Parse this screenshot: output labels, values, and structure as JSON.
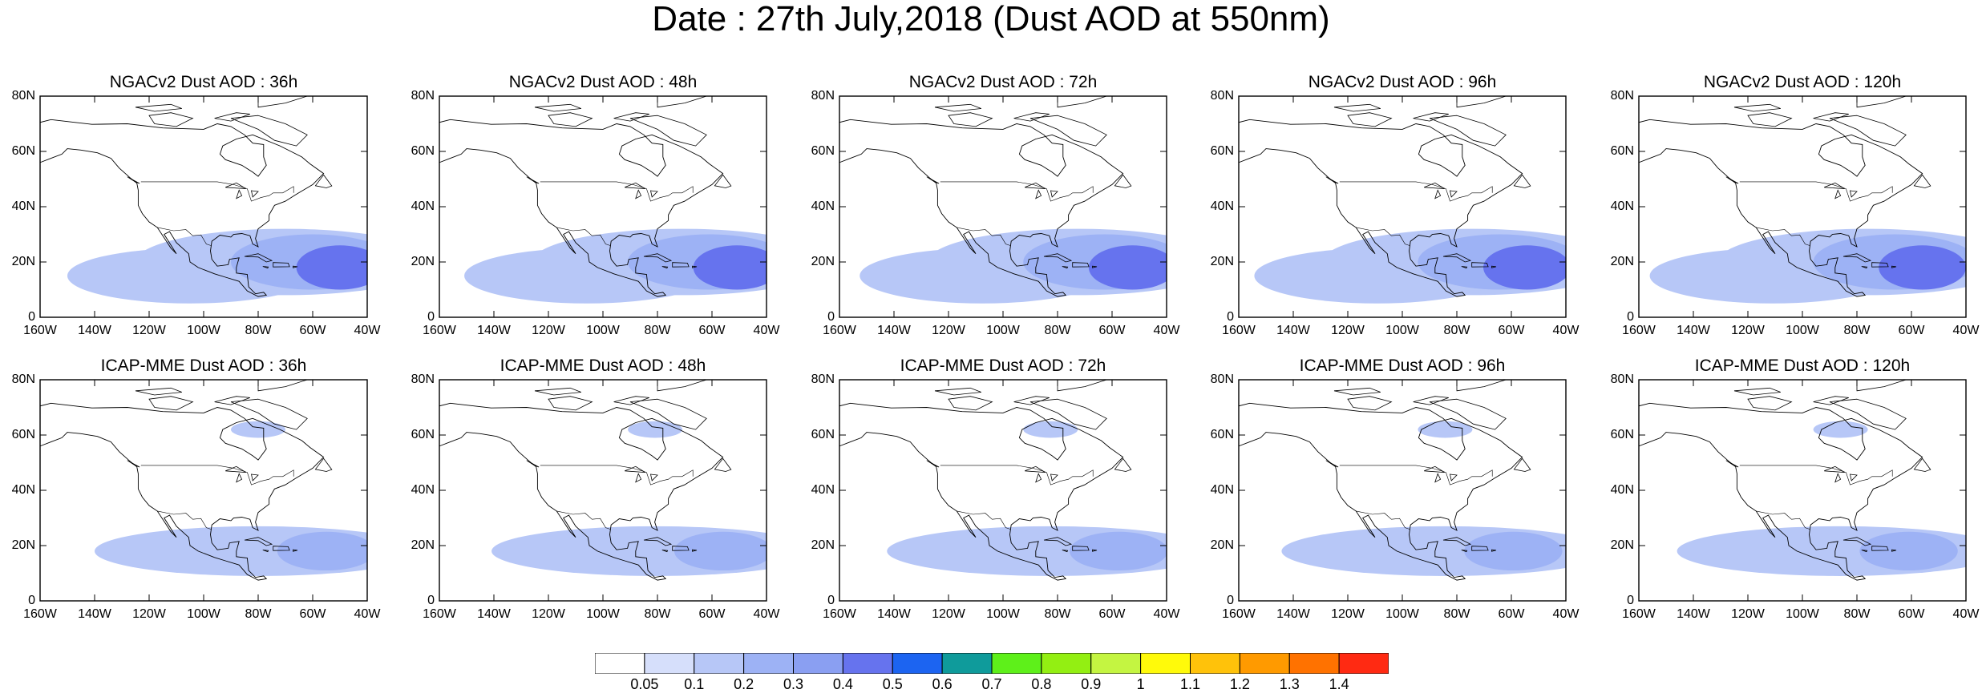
{
  "title": "Date : 27th July,2018 (Dust AOD at 550nm)",
  "panels": [
    {
      "title": "NGACv2 Dust AOD : 36h",
      "row": 0,
      "col": 0,
      "model": "NGACv2",
      "lead_hours": 36
    },
    {
      "title": "NGACv2 Dust AOD : 48h",
      "row": 0,
      "col": 1,
      "model": "NGACv2",
      "lead_hours": 48
    },
    {
      "title": "NGACv2 Dust AOD : 72h",
      "row": 0,
      "col": 2,
      "model": "NGACv2",
      "lead_hours": 72
    },
    {
      "title": "NGACv2 Dust AOD : 96h",
      "row": 0,
      "col": 3,
      "model": "NGACv2",
      "lead_hours": 96
    },
    {
      "title": "NGACv2 Dust AOD : 120h",
      "row": 0,
      "col": 4,
      "model": "NGACv2",
      "lead_hours": 120
    },
    {
      "title": "ICAP-MME Dust AOD : 36h",
      "row": 1,
      "col": 0,
      "model": "ICAP-MME",
      "lead_hours": 36
    },
    {
      "title": "ICAP-MME Dust AOD : 48h",
      "row": 1,
      "col": 1,
      "model": "ICAP-MME",
      "lead_hours": 48
    },
    {
      "title": "ICAP-MME Dust AOD : 72h",
      "row": 1,
      "col": 2,
      "model": "ICAP-MME",
      "lead_hours": 72
    },
    {
      "title": "ICAP-MME Dust AOD : 96h",
      "row": 1,
      "col": 3,
      "model": "ICAP-MME",
      "lead_hours": 96
    },
    {
      "title": "ICAP-MME Dust AOD : 120h",
      "row": 1,
      "col": 4,
      "model": "ICAP-MME",
      "lead_hours": 120
    }
  ],
  "axes": {
    "lon_range": [
      -160,
      -40
    ],
    "lat_range": [
      0,
      80
    ],
    "lon_ticks": [
      "160W",
      "140W",
      "120W",
      "100W",
      "80W",
      "60W",
      "40W"
    ],
    "lat_ticks": [
      "80N",
      "60N",
      "40N",
      "20N",
      "0"
    ]
  },
  "colorbar": {
    "levels": [
      "0.05",
      "0.1",
      "0.2",
      "0.3",
      "0.4",
      "0.5",
      "0.6",
      "0.7",
      "0.8",
      "0.9",
      "1",
      "1.1",
      "1.2",
      "1.3",
      "1.4"
    ],
    "colors": [
      "#ffffff",
      "#d6dffb",
      "#b7c7f7",
      "#9db2f5",
      "#8a9ff2",
      "#6673ee",
      "#1c64f1",
      "#0f9b9b",
      "#5ef01a",
      "#93ef12",
      "#c4f541",
      "#fffa0a",
      "#ffc20a",
      "#ff9a00",
      "#ff7200",
      "#ff2a12"
    ]
  },
  "dust_plumes": {
    "NGACv2": [
      {
        "lon": -70,
        "lat": 20,
        "rlon": 55,
        "rlat": 12,
        "level": 1
      },
      {
        "lon": -105,
        "lat": 15,
        "rlon": 45,
        "rlat": 10,
        "level": 1
      },
      {
        "lon": -60,
        "lat": 20,
        "rlon": 30,
        "rlat": 10,
        "level": 2
      },
      {
        "lon": -50,
        "lat": 18,
        "rlon": 16,
        "rlat": 8,
        "level": 4
      }
    ],
    "ICAP-MME": [
      {
        "lon": -80,
        "lat": 18,
        "rlon": 60,
        "rlat": 9,
        "level": 1
      },
      {
        "lon": -55,
        "lat": 18,
        "rlon": 18,
        "rlat": 7,
        "level": 2
      },
      {
        "lon": -80,
        "lat": 62,
        "rlon": 10,
        "rlat": 3,
        "level": 1
      }
    ]
  }
}
